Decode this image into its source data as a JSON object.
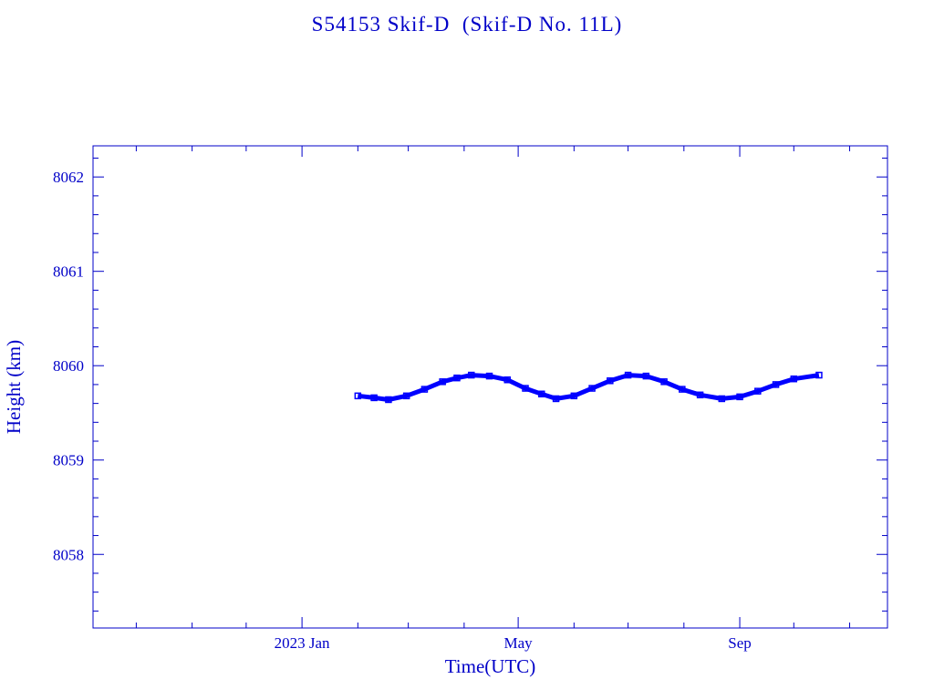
{
  "chart_data": {
    "type": "scatter",
    "title": "S54153 Skif-D  (Skif-D No. 11L)",
    "xlabel": "Time(UTC)",
    "ylabel": "Height (km)",
    "xlim": [
      "2022-09-07",
      "2023-11-22"
    ],
    "ylim": [
      8057.22,
      8062.33
    ],
    "x_ticks": [
      {
        "date": "2023-01-01",
        "label": "2023 Jan"
      },
      {
        "date": "2023-05-01",
        "label": "May"
      },
      {
        "date": "2023-09-01",
        "label": "Sep"
      }
    ],
    "x_minor_ticks": [
      "2022-10-01",
      "2022-11-01",
      "2022-12-01",
      "2023-02-01",
      "2023-03-01",
      "2023-04-01",
      "2023-06-01",
      "2023-07-01",
      "2023-08-01",
      "2023-10-01",
      "2023-11-01"
    ],
    "y_ticks": [
      8058,
      8059,
      8060,
      8061,
      8062
    ],
    "grid": false,
    "color": "#0000ff",
    "axis_color": "#0000c8",
    "points": [
      {
        "x": "2023-02-01",
        "y": 8059.68
      },
      {
        "x": "2023-02-10",
        "y": 8059.66
      },
      {
        "x": "2023-02-18",
        "y": 8059.64
      },
      {
        "x": "2023-02-28",
        "y": 8059.68
      },
      {
        "x": "2023-03-10",
        "y": 8059.75
      },
      {
        "x": "2023-03-20",
        "y": 8059.83
      },
      {
        "x": "2023-03-28",
        "y": 8059.87
      },
      {
        "x": "2023-04-05",
        "y": 8059.9
      },
      {
        "x": "2023-04-15",
        "y": 8059.89
      },
      {
        "x": "2023-04-25",
        "y": 8059.85
      },
      {
        "x": "2023-05-05",
        "y": 8059.76
      },
      {
        "x": "2023-05-14",
        "y": 8059.7
      },
      {
        "x": "2023-05-22",
        "y": 8059.65
      },
      {
        "x": "2023-06-01",
        "y": 8059.68
      },
      {
        "x": "2023-06-11",
        "y": 8059.76
      },
      {
        "x": "2023-06-21",
        "y": 8059.84
      },
      {
        "x": "2023-07-01",
        "y": 8059.9
      },
      {
        "x": "2023-07-11",
        "y": 8059.89
      },
      {
        "x": "2023-07-21",
        "y": 8059.83
      },
      {
        "x": "2023-07-31",
        "y": 8059.75
      },
      {
        "x": "2023-08-10",
        "y": 8059.69
      },
      {
        "x": "2023-08-22",
        "y": 8059.65
      },
      {
        "x": "2023-09-01",
        "y": 8059.67
      },
      {
        "x": "2023-09-11",
        "y": 8059.73
      },
      {
        "x": "2023-09-21",
        "y": 8059.8
      },
      {
        "x": "2023-10-01",
        "y": 8059.86
      },
      {
        "x": "2023-10-15",
        "y": 8059.9
      }
    ]
  }
}
